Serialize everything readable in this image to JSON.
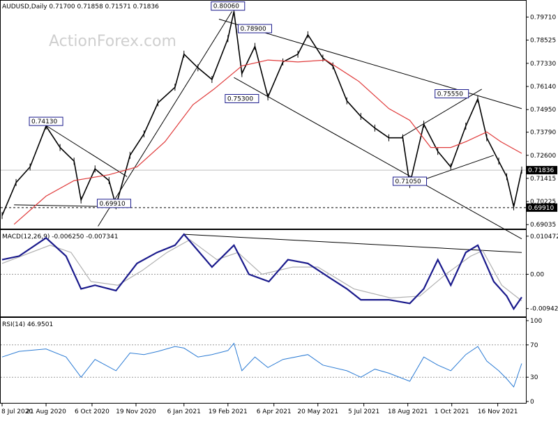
{
  "chart_data": {
    "type": "line",
    "title": "",
    "colors": {
      "price": "#000000",
      "sma": "#e03a3a",
      "macd": "#1a1a8c",
      "signal": "#b0b0b0",
      "rsi": "#2b7bd4",
      "grid": "#c8c8c8",
      "watermark": "#cfcfcf"
    },
    "watermark": "ActionForex.com",
    "x_ticks": [
      "8 Jul 2020",
      "21 Aug 2020",
      "6 Oct 2020",
      "19 Nov 2020",
      "6 Jan 2021",
      "19 Feb 2021",
      "6 Apr 2021",
      "20 May 2021",
      "5 Jul 2021",
      "18 Aug 2021",
      "1 Oct 2021",
      "16 Nov 2021"
    ],
    "main": {
      "header": "AUDUSD,Daily  0.71700 0.71858 0.71571 0.71836",
      "y_ticks": [
        "0.79710",
        "0.78525",
        "0.77330",
        "0.76140",
        "0.74950",
        "0.73790",
        "0.72600",
        "0.71415",
        "0.70225",
        "0.69035"
      ],
      "ylim": [
        0.689,
        0.803
      ],
      "last_price": "0.71836",
      "support_level": "0.69910",
      "annotations": [
        {
          "label": "0.80060",
          "x_date": "2021-02-19",
          "y": 0.8006
        },
        {
          "label": "0.78900",
          "x_date": "2021-03-18",
          "y": 0.789
        },
        {
          "label": "0.74130",
          "x_date": "2020-08-21",
          "y": 0.7413
        },
        {
          "label": "0.75300",
          "x_date": "2021-03-05",
          "y": 0.753
        },
        {
          "label": "0.75550",
          "x_date": "2021-10-01",
          "y": 0.7555
        },
        {
          "label": "0.71050",
          "x_date": "2021-08-20",
          "y": 0.7105
        },
        {
          "label": "0.69910",
          "x_date": "2020-10-28",
          "y": 0.6991
        }
      ],
      "series": [
        {
          "name": "AUDUSD",
          "points": [
            [
              "2020-07-08",
              0.695
            ],
            [
              "2020-07-22",
              0.712
            ],
            [
              "2020-08-05",
              0.72
            ],
            [
              "2020-08-21",
              0.741
            ],
            [
              "2020-09-04",
              0.73
            ],
            [
              "2020-09-18",
              0.723
            ],
            [
              "2020-09-25",
              0.703
            ],
            [
              "2020-10-09",
              0.719
            ],
            [
              "2020-10-23",
              0.713
            ],
            [
              "2020-10-30",
              0.7
            ],
            [
              "2020-11-13",
              0.726
            ],
            [
              "2020-11-27",
              0.737
            ],
            [
              "2020-12-11",
              0.753
            ],
            [
              "2020-12-28",
              0.761
            ],
            [
              "2021-01-06",
              0.778
            ],
            [
              "2021-01-20",
              0.771
            ],
            [
              "2021-02-03",
              0.765
            ],
            [
              "2021-02-19",
              0.786
            ],
            [
              "2021-02-25",
              0.8
            ],
            [
              "2021-03-05",
              0.768
            ],
            [
              "2021-03-18",
              0.782
            ],
            [
              "2021-03-31",
              0.756
            ],
            [
              "2021-04-15",
              0.774
            ],
            [
              "2021-04-30",
              0.778
            ],
            [
              "2021-05-10",
              0.788
            ],
            [
              "2021-05-25",
              0.776
            ],
            [
              "2021-06-04",
              0.772
            ],
            [
              "2021-06-18",
              0.754
            ],
            [
              "2021-07-02",
              0.746
            ],
            [
              "2021-07-16",
              0.74
            ],
            [
              "2021-07-30",
              0.735
            ],
            [
              "2021-08-13",
              0.735
            ],
            [
              "2021-08-20",
              0.711
            ],
            [
              "2021-09-03",
              0.742
            ],
            [
              "2021-09-17",
              0.728
            ],
            [
              "2021-09-30",
              0.72
            ],
            [
              "2021-10-15",
              0.741
            ],
            [
              "2021-10-27",
              0.755
            ],
            [
              "2021-11-05",
              0.735
            ],
            [
              "2021-11-17",
              0.723
            ],
            [
              "2021-11-25",
              0.715
            ],
            [
              "2021-12-02",
              0.6995
            ],
            [
              "2021-12-10",
              0.7184
            ]
          ]
        },
        {
          "name": "",
          "points": [
            [
              "2020-07-20",
              0.6905
            ],
            [
              "2020-08-21",
              0.705
            ],
            [
              "2020-09-18",
              0.713
            ],
            [
              "2020-10-23",
              0.716
            ],
            [
              "2020-11-20",
              0.72
            ],
            [
              "2020-12-18",
              0.733
            ],
            [
              "2021-01-15",
              0.752
            ],
            [
              "2021-02-05",
              0.76
            ],
            [
              "2021-03-05",
              0.772
            ],
            [
              "2021-03-31",
              0.775
            ],
            [
              "2021-04-30",
              0.774
            ],
            [
              "2021-05-28",
              0.775
            ],
            [
              "2021-06-30",
              0.764
            ],
            [
              "2021-07-30",
              0.75
            ],
            [
              "2021-08-20",
              0.744
            ],
            [
              "2021-09-10",
              0.73
            ],
            [
              "2021-09-30",
              0.73
            ],
            [
              "2021-10-15",
              0.733
            ],
            [
              "2021-11-05",
              0.738
            ],
            [
              "2021-11-19",
              0.733
            ],
            [
              "2021-12-10",
              0.727
            ]
          ]
        }
      ],
      "trendlines": [
        {
          "from": [
            "2020-08-21",
            0.7413
          ],
          "to": [
            "2020-11-10",
            0.715
          ]
        },
        {
          "from": [
            "2020-07-20",
            0.7005
          ],
          "to": [
            "2020-11-06",
            0.6995
          ]
        },
        {
          "from": [
            "2020-10-12",
            0.6895
          ],
          "to": [
            "2021-02-23",
            0.8
          ]
        },
        {
          "from": [
            "2021-02-10",
            0.796
          ],
          "to": [
            "2021-12-10",
            0.75
          ]
        },
        {
          "from": [
            "2021-02-25",
            0.766
          ],
          "to": [
            "2021-12-10",
            0.683
          ]
        },
        {
          "from": [
            "2021-08-20",
            0.711
          ],
          "to": [
            "2021-11-12",
            0.726
          ]
        },
        {
          "from": [
            "2021-08-12",
            0.7355
          ],
          "to": [
            "2021-10-31",
            0.76
          ]
        }
      ]
    },
    "macd": {
      "header": "MACD(12,26,9) -0.006250 -0.007341",
      "y_ticks": [
        "0.010472",
        "0.00",
        "-0.009426"
      ],
      "ylim": [
        -0.0112,
        0.0114
      ],
      "series": [
        {
          "name": "",
          "points": [
            [
              "2020-07-08",
              0.004
            ],
            [
              "2020-07-25",
              0.005
            ],
            [
              "2020-08-21",
              0.01
            ],
            [
              "2020-09-10",
              0.005
            ],
            [
              "2020-09-25",
              -0.004
            ],
            [
              "2020-10-09",
              -0.003
            ],
            [
              "2020-10-30",
              -0.0045
            ],
            [
              "2020-11-20",
              0.003
            ],
            [
              "2020-12-10",
              0.006
            ],
            [
              "2020-12-28",
              0.008
            ],
            [
              "2021-01-06",
              0.011
            ],
            [
              "2021-02-03",
              0.002
            ],
            [
              "2021-02-25",
              0.008
            ],
            [
              "2021-03-12",
              0.0
            ],
            [
              "2021-04-01",
              -0.002
            ],
            [
              "2021-04-20",
              0.004
            ],
            [
              "2021-05-10",
              0.003
            ],
            [
              "2021-06-01",
              -0.001
            ],
            [
              "2021-06-18",
              -0.004
            ],
            [
              "2021-07-02",
              -0.007
            ],
            [
              "2021-07-30",
              -0.007
            ],
            [
              "2021-08-20",
              -0.008
            ],
            [
              "2021-09-03",
              -0.004
            ],
            [
              "2021-09-17",
              0.004
            ],
            [
              "2021-09-30",
              -0.003
            ],
            [
              "2021-10-15",
              0.006
            ],
            [
              "2021-10-27",
              0.008
            ],
            [
              "2021-11-12",
              -0.002
            ],
            [
              "2021-11-25",
              -0.006
            ],
            [
              "2021-12-02",
              -0.0095
            ],
            [
              "2021-12-10",
              -0.0063
            ]
          ]
        },
        {
          "name": "",
          "points": [
            [
              "2020-07-08",
              0.003
            ],
            [
              "2020-08-25",
              0.008
            ],
            [
              "2020-09-15",
              0.006
            ],
            [
              "2020-10-05",
              -0.002
            ],
            [
              "2020-11-01",
              -0.003
            ],
            [
              "2020-11-25",
              0.001
            ],
            [
              "2020-12-20",
              0.006
            ],
            [
              "2021-01-12",
              0.0095
            ],
            [
              "2021-02-08",
              0.004
            ],
            [
              "2021-03-01",
              0.006
            ],
            [
              "2021-03-25",
              0.0
            ],
            [
              "2021-04-25",
              0.002
            ],
            [
              "2021-05-20",
              0.002
            ],
            [
              "2021-06-25",
              -0.004
            ],
            [
              "2021-08-01",
              -0.0065
            ],
            [
              "2021-08-30",
              -0.006
            ],
            [
              "2021-09-25",
              0.0
            ],
            [
              "2021-10-20",
              0.005
            ],
            [
              "2021-11-01",
              0.0065
            ],
            [
              "2021-11-20",
              -0.003
            ],
            [
              "2021-12-10",
              -0.0073
            ]
          ]
        }
      ],
      "trendlines": [
        {
          "from": [
            "2021-01-06",
            0.011
          ],
          "to": [
            "2021-12-10",
            0.006
          ]
        }
      ]
    },
    "rsi": {
      "header": "RSI(14) 46.9501",
      "y_ticks": [
        "100",
        "70",
        "30",
        "0"
      ],
      "ylim": [
        0,
        100
      ],
      "levels": [
        70,
        30
      ],
      "series": [
        {
          "name": "",
          "points": [
            [
              "2020-07-08",
              55
            ],
            [
              "2020-07-25",
              62
            ],
            [
              "2020-08-21",
              65
            ],
            [
              "2020-09-10",
              55
            ],
            [
              "2020-09-25",
              30
            ],
            [
              "2020-10-09",
              52
            ],
            [
              "2020-10-30",
              38
            ],
            [
              "2020-11-13",
              60
            ],
            [
              "2020-11-27",
              58
            ],
            [
              "2020-12-11",
              62
            ],
            [
              "2020-12-28",
              68
            ],
            [
              "2021-01-06",
              66
            ],
            [
              "2021-01-20",
              55
            ],
            [
              "2021-02-03",
              58
            ],
            [
              "2021-02-19",
              63
            ],
            [
              "2021-02-25",
              72
            ],
            [
              "2021-03-05",
              38
            ],
            [
              "2021-03-18",
              55
            ],
            [
              "2021-03-31",
              42
            ],
            [
              "2021-04-15",
              52
            ],
            [
              "2021-05-10",
              58
            ],
            [
              "2021-05-25",
              45
            ],
            [
              "2021-06-18",
              38
            ],
            [
              "2021-07-02",
              30
            ],
            [
              "2021-07-16",
              40
            ],
            [
              "2021-07-30",
              35
            ],
            [
              "2021-08-20",
              25
            ],
            [
              "2021-09-03",
              55
            ],
            [
              "2021-09-17",
              45
            ],
            [
              "2021-09-30",
              38
            ],
            [
              "2021-10-15",
              58
            ],
            [
              "2021-10-27",
              68
            ],
            [
              "2021-11-05",
              50
            ],
            [
              "2021-11-17",
              38
            ],
            [
              "2021-11-25",
              28
            ],
            [
              "2021-12-02",
              18
            ],
            [
              "2021-12-10",
              47
            ]
          ]
        }
      ]
    }
  }
}
